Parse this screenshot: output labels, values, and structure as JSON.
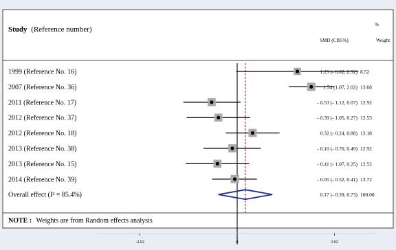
{
  "header": {
    "study_label": "Study",
    "study_suffix": "(Reference number)",
    "pct_label": "%",
    "smd_label": "SMD (CI95%)",
    "weight_label": "Weight"
  },
  "note": {
    "label": "NOTE :",
    "text": "Weights are from Random effects analysis"
  },
  "colors": {
    "background": "#e9eef5",
    "panel": "#ffffff",
    "ink": "#000000",
    "box": "#aaaaaa",
    "diamond": "#1c2d8a",
    "overall_line": "#cc0000"
  },
  "chart_data": {
    "type": "forest",
    "xlim": [
      -2.9,
      2.9
    ],
    "x_ticks": [
      -2.02,
      0,
      2.02
    ],
    "x_tick_labels": [
      "-2.02",
      "0",
      "2.02"
    ],
    "null_line": 0,
    "overall_line": 0.17,
    "studies": [
      {
        "label": "1999 (Reference No. 16)",
        "smd": 1.25,
        "lo": -0.02,
        "hi": 2.52,
        "weight": 8.52,
        "ci_text": "1.25 (- 0.02, 2.52)",
        "weight_text": "8.52"
      },
      {
        "label": "2007 (Reference No. 36)",
        "smd": 1.54,
        "lo": 1.07,
        "hi": 2.02,
        "weight": 13.68,
        "ci_text": "1.54 (1.07, 2.02)",
        "weight_text": "13.68"
      },
      {
        "label": "2011 (Reference No. 17)",
        "smd": -0.53,
        "lo": -1.12,
        "hi": 0.07,
        "weight": 12.92,
        "ci_text": "- 0.53 (- 1.12, 0.07)",
        "weight_text": "12.92"
      },
      {
        "label": "2012 (Reference No. 37)",
        "smd": -0.39,
        "lo": -1.05,
        "hi": 0.27,
        "weight": 12.53,
        "ci_text": "- 0.39 (- 1.05, 0.27)",
        "weight_text": "12.53"
      },
      {
        "label": "2012 (Reference No. 18)",
        "smd": 0.32,
        "lo": -0.24,
        "hi": 0.88,
        "weight": 13.18,
        "ci_text": "0.32 (- 0.24, 0.88)",
        "weight_text": "13.18"
      },
      {
        "label": "2013 (Reference No. 38)",
        "smd": -0.1,
        "lo": -0.7,
        "hi": 0.49,
        "weight": 12.92,
        "ci_text": "- 0.10 (- 0.70, 0.49)",
        "weight_text": "12.92"
      },
      {
        "label": "2013 (Reference No. 15)",
        "smd": -0.41,
        "lo": -1.07,
        "hi": 0.25,
        "weight": 12.52,
        "ci_text": "- 0.41 (- 1.07, 0.25)",
        "weight_text": "12.52"
      },
      {
        "label": "2014 (Reference No. 39)",
        "smd": -0.05,
        "lo": -0.52,
        "hi": 0.41,
        "weight": 13.72,
        "ci_text": "- 0.05 (- 0.52, 0.41)",
        "weight_text": "13.72"
      }
    ],
    "overall": {
      "label": "Overall effect (I² = 85.4%)",
      "smd": 0.17,
      "lo": -0.39,
      "hi": 0.73,
      "weight": 100.0,
      "ci_text": "0.17 (- 0.39, 0.73)",
      "weight_text": "100.00"
    }
  }
}
